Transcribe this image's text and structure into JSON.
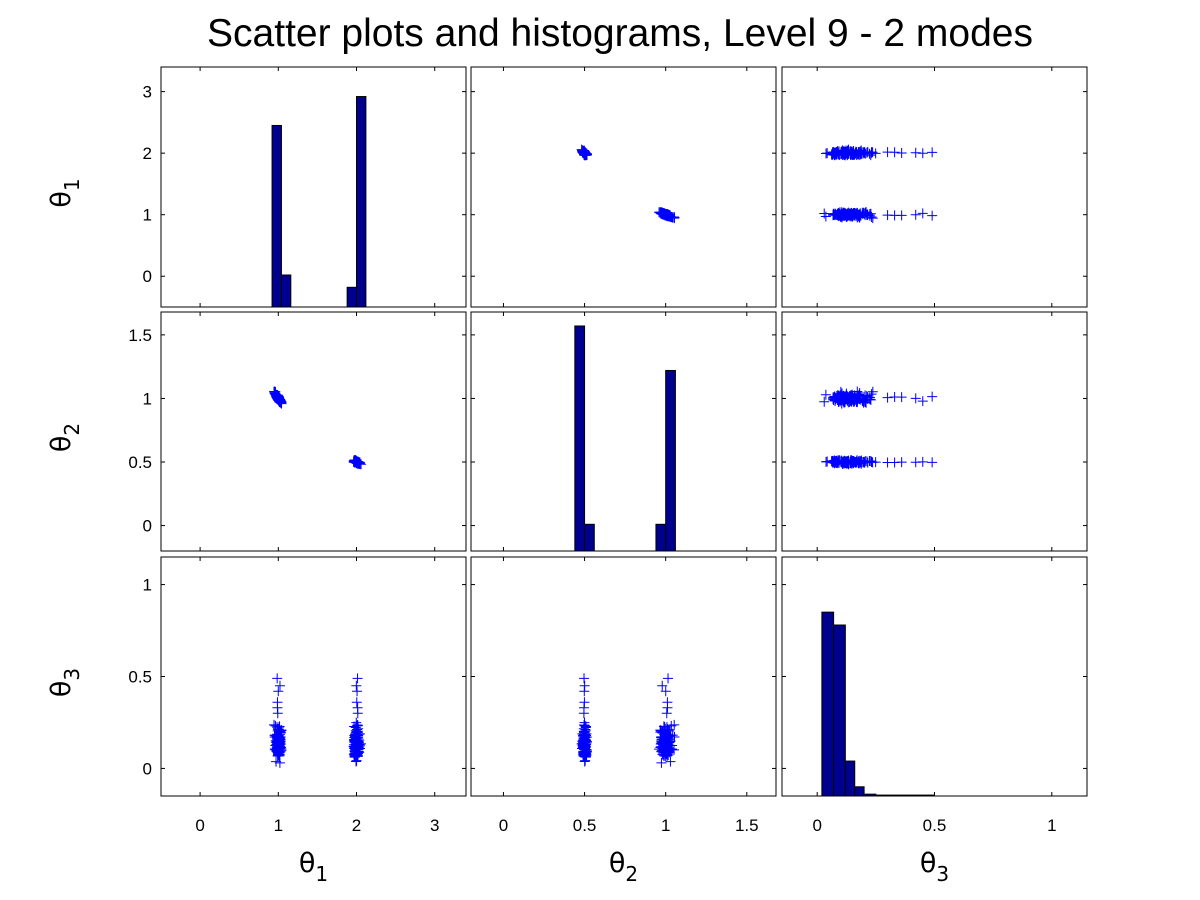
{
  "title": "Scatter plots and histograms, Level 9 - 2 modes",
  "colors": {
    "scatter": "#0000ff",
    "bar_fill": "#00008f",
    "bar_edge": "#000000"
  },
  "chart_data": {
    "type": "scatter-matrix",
    "variables": [
      {
        "symbol": "θ",
        "subscript": "1",
        "range": [
          -0.5,
          3.4
        ],
        "ticks": [
          0,
          1,
          2,
          3
        ],
        "tick_labels": [
          "0",
          "1",
          "2",
          "3"
        ]
      },
      {
        "symbol": "θ",
        "subscript": "2",
        "range": [
          -0.2,
          1.68
        ],
        "ticks": [
          0,
          0.5,
          1,
          1.5
        ],
        "tick_labels": [
          "0",
          "0.5",
          "1",
          "1.5"
        ]
      },
      {
        "symbol": "θ",
        "subscript": "3",
        "range": [
          -0.15,
          1.15
        ],
        "ticks": [
          0,
          0.5,
          1
        ],
        "tick_labels": [
          "0",
          "0.5",
          "1"
        ]
      }
    ],
    "histograms": [
      {
        "variable": "θ1",
        "xlim": [
          -0.5,
          3.4
        ],
        "bins": [
          {
            "x0": 0.92,
            "x1": 1.04,
            "value": 2.45
          },
          {
            "x0": 1.04,
            "x1": 1.16,
            "value": 0.02
          },
          {
            "x0": 1.88,
            "x1": 2.0,
            "value": -0.18
          },
          {
            "x0": 2.0,
            "x1": 2.12,
            "value": 2.92
          }
        ]
      },
      {
        "variable": "θ2",
        "xlim": [
          -0.2,
          1.68
        ],
        "bins": [
          {
            "x0": 0.44,
            "x1": 0.5,
            "value": 1.57
          },
          {
            "x0": 0.5,
            "x1": 0.56,
            "value": 0.01
          },
          {
            "x0": 0.94,
            "x1": 1.0,
            "value": 0.01
          },
          {
            "x0": 1.0,
            "x1": 1.06,
            "value": 1.22
          }
        ]
      },
      {
        "variable": "θ3",
        "xlim": [
          -0.15,
          1.15
        ],
        "bins": [
          {
            "x0": 0.02,
            "x1": 0.07,
            "value": 0.85
          },
          {
            "x0": 0.07,
            "x1": 0.12,
            "value": 0.78
          },
          {
            "x0": 0.12,
            "x1": 0.16,
            "value": 0.04
          },
          {
            "x0": 0.16,
            "x1": 0.2,
            "value": -0.1
          },
          {
            "x0": 0.2,
            "x1": 0.25,
            "value": -0.14
          },
          {
            "x0": 0.25,
            "x1": 0.5,
            "value": -0.145
          }
        ]
      }
    ],
    "scatter_clusters": {
      "theta1_vs_theta2": [
        {
          "theta1": 2.0,
          "theta2": 0.5
        },
        {
          "theta1": 1.0,
          "theta2": 1.0
        }
      ],
      "theta3_range": [
        0.02,
        0.49
      ],
      "theta3_bulk_mean": 0.13,
      "theta3_outliers": [
        0.3,
        0.33,
        0.36,
        0.42,
        0.45,
        0.49
      ]
    }
  }
}
